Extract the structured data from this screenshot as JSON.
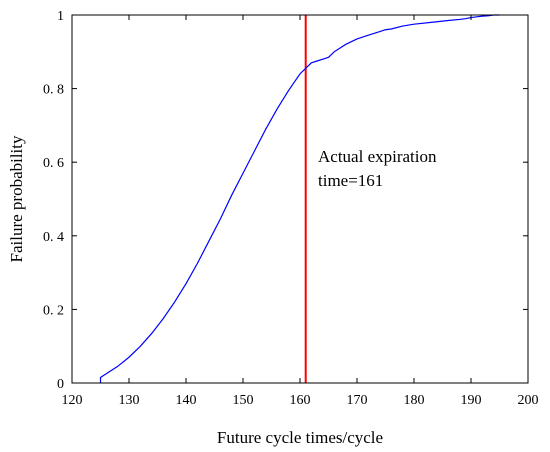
{
  "chart_data": {
    "type": "line",
    "title": "",
    "xlabel": "Future cycle times/cycle",
    "ylabel": "Failure probability",
    "xlim": [
      120,
      200
    ],
    "ylim": [
      0,
      1
    ],
    "xticks": [
      120,
      130,
      140,
      150,
      160,
      170,
      180,
      190,
      200
    ],
    "yticks": [
      0,
      0.2,
      0.4,
      0.6,
      0.8,
      1
    ],
    "ytick_labels": [
      "0",
      "0. 2",
      "0. 4",
      "0. 6",
      "0. 8",
      "1"
    ],
    "grid": false,
    "legend": "none",
    "series": [
      {
        "color": "#0000ff",
        "x": [
          125,
          125,
          126,
          128,
          130,
          132,
          134,
          136,
          138,
          140,
          142,
          144,
          146,
          148,
          150,
          152,
          154,
          156,
          158,
          160,
          161,
          162,
          163,
          164,
          165,
          166,
          168,
          170,
          172,
          174,
          175,
          176,
          178,
          180,
          183,
          186,
          188,
          189,
          190,
          191,
          192,
          193,
          194,
          195
        ],
        "y": [
          0,
          0.015,
          0.025,
          0.045,
          0.07,
          0.1,
          0.135,
          0.175,
          0.22,
          0.27,
          0.325,
          0.385,
          0.445,
          0.51,
          0.57,
          0.63,
          0.69,
          0.745,
          0.795,
          0.84,
          0.855,
          0.87,
          0.875,
          0.88,
          0.885,
          0.9,
          0.92,
          0.935,
          0.945,
          0.955,
          0.96,
          0.962,
          0.97,
          0.975,
          0.98,
          0.985,
          0.988,
          0.99,
          0.993,
          0.995,
          0.997,
          0.998,
          1.0,
          1.0
        ]
      }
    ],
    "vline": {
      "x": 161,
      "color": "#ff0000"
    },
    "annotation": {
      "line1": "Actual expiration",
      "line2": "time=161"
    }
  }
}
